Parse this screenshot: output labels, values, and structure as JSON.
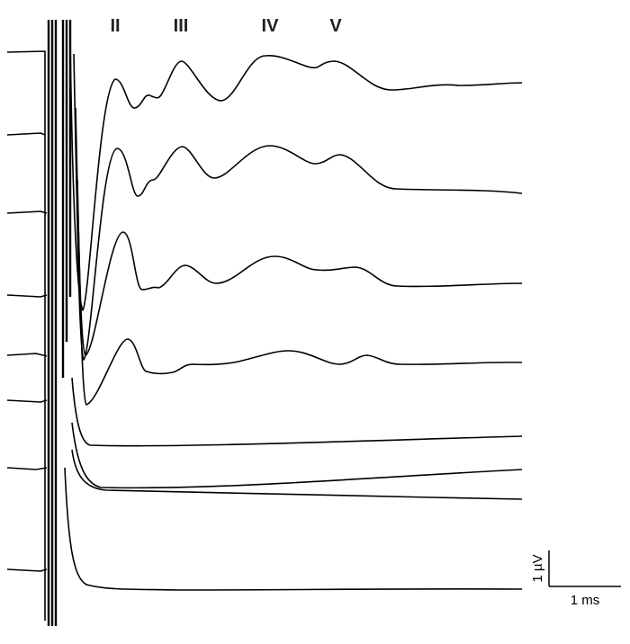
{
  "peaks": [
    "II",
    "III",
    "IV",
    "V"
  ],
  "scale_bar": {
    "vertical": "1 µV",
    "horizontal": "1 ms"
  }
}
